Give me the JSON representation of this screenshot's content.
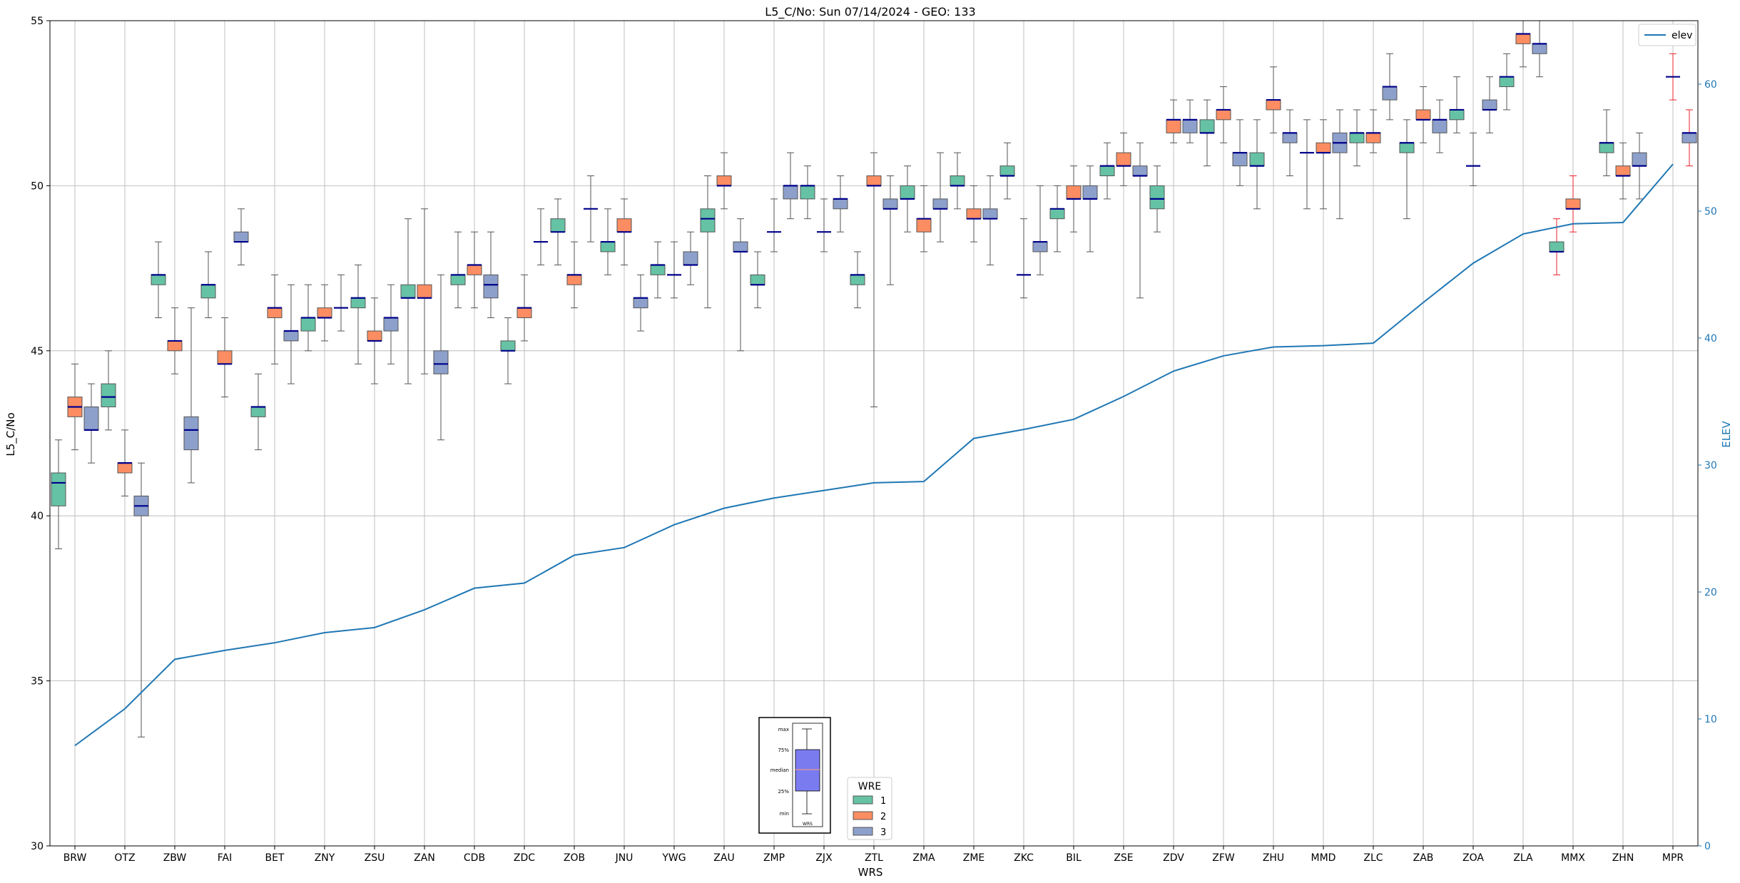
{
  "chart_data": {
    "type": "box",
    "title": "L5_C/No: Sun 07/14/2024 - GEO: 133",
    "xlabel": "WRS",
    "ylabel": "L5_C/No",
    "y2label": "ELEV",
    "ylim": [
      30,
      55
    ],
    "y2lim": [
      0,
      65
    ],
    "yticks": [
      30,
      35,
      40,
      45,
      50,
      55
    ],
    "y2ticks": [
      0,
      10,
      20,
      30,
      40,
      50,
      60
    ],
    "grid": true,
    "categories": [
      "BRW",
      "OTZ",
      "ZBW",
      "FAI",
      "BET",
      "ZNY",
      "ZSU",
      "ZAN",
      "CDB",
      "ZDC",
      "ZOB",
      "JNU",
      "YWG",
      "ZAU",
      "ZMP",
      "ZJX",
      "ZTL",
      "ZMA",
      "ZME",
      "ZKC",
      "BIL",
      "ZSE",
      "ZDV",
      "ZFW",
      "ZHU",
      "MMD",
      "ZLC",
      "ZAB",
      "ZOA",
      "ZLA",
      "MMX",
      "ZHN",
      "MPR"
    ],
    "wre_colors": {
      "1": "#66c2a5",
      "2": "#fc8d62",
      "3": "#8da0cb"
    },
    "median_color": "#00008b",
    "boxes": [
      {
        "wrs": "BRW",
        "wre": 1,
        "min": 39.0,
        "q1": 40.3,
        "med": 41.0,
        "q3": 41.3,
        "max": 42.3
      },
      {
        "wrs": "BRW",
        "wre": 2,
        "min": 42.0,
        "q1": 43.0,
        "med": 43.3,
        "q3": 43.6,
        "max": 44.6
      },
      {
        "wrs": "BRW",
        "wre": 3,
        "min": 41.6,
        "q1": 42.6,
        "med": 42.6,
        "q3": 43.3,
        "max": 44.0
      },
      {
        "wrs": "OTZ",
        "wre": 1,
        "min": 42.6,
        "q1": 43.3,
        "med": 43.6,
        "q3": 44.0,
        "max": 45.0
      },
      {
        "wrs": "OTZ",
        "wre": 2,
        "min": 40.6,
        "q1": 41.3,
        "med": 41.6,
        "q3": 41.6,
        "max": 42.6
      },
      {
        "wrs": "OTZ",
        "wre": 3,
        "min": 33.3,
        "q1": 40.0,
        "med": 40.3,
        "q3": 40.6,
        "max": 41.6
      },
      {
        "wrs": "ZBW",
        "wre": 1,
        "min": 46.0,
        "q1": 47.0,
        "med": 47.3,
        "q3": 47.3,
        "max": 48.3
      },
      {
        "wrs": "ZBW",
        "wre": 2,
        "min": 44.3,
        "q1": 45.0,
        "med": 45.3,
        "q3": 45.3,
        "max": 46.3
      },
      {
        "wrs": "ZBW",
        "wre": 3,
        "min": 41.0,
        "q1": 42.0,
        "med": 42.6,
        "q3": 43.0,
        "max": 46.3
      },
      {
        "wrs": "FAI",
        "wre": 1,
        "min": 46.0,
        "q1": 46.6,
        "med": 47.0,
        "q3": 47.0,
        "max": 48.0
      },
      {
        "wrs": "FAI",
        "wre": 2,
        "min": 43.6,
        "q1": 44.6,
        "med": 44.6,
        "q3": 45.0,
        "max": 46.0
      },
      {
        "wrs": "FAI",
        "wre": 3,
        "min": 47.6,
        "q1": 48.3,
        "med": 48.3,
        "q3": 48.6,
        "max": 49.3
      },
      {
        "wrs": "BET",
        "wre": 1,
        "min": 42.0,
        "q1": 43.0,
        "med": 43.3,
        "q3": 43.3,
        "max": 44.3
      },
      {
        "wrs": "BET",
        "wre": 2,
        "min": 44.6,
        "q1": 46.0,
        "med": 46.3,
        "q3": 46.3,
        "max": 47.3
      },
      {
        "wrs": "BET",
        "wre": 3,
        "min": 44.0,
        "q1": 45.3,
        "med": 45.6,
        "q3": 45.6,
        "max": 47.0
      },
      {
        "wrs": "ZNY",
        "wre": 1,
        "min": 45.0,
        "q1": 45.6,
        "med": 46.0,
        "q3": 46.0,
        "max": 47.0
      },
      {
        "wrs": "ZNY",
        "wre": 2,
        "min": 45.3,
        "q1": 46.0,
        "med": 46.0,
        "q3": 46.3,
        "max": 47.0
      },
      {
        "wrs": "ZNY",
        "wre": 3,
        "min": 45.6,
        "q1": 46.3,
        "med": 46.3,
        "q3": 46.3,
        "max": 47.3
      },
      {
        "wrs": "ZSU",
        "wre": 1,
        "min": 44.6,
        "q1": 46.3,
        "med": 46.6,
        "q3": 46.6,
        "max": 47.6
      },
      {
        "wrs": "ZSU",
        "wre": 2,
        "min": 44.0,
        "q1": 45.3,
        "med": 45.3,
        "q3": 45.6,
        "max": 46.6
      },
      {
        "wrs": "ZSU",
        "wre": 3,
        "min": 44.6,
        "q1": 45.6,
        "med": 46.0,
        "q3": 46.0,
        "max": 47.0
      },
      {
        "wrs": "ZAN",
        "wre": 1,
        "min": 44.0,
        "q1": 46.6,
        "med": 46.6,
        "q3": 47.0,
        "max": 49.0
      },
      {
        "wrs": "ZAN",
        "wre": 2,
        "min": 44.3,
        "q1": 46.6,
        "med": 46.6,
        "q3": 47.0,
        "max": 49.3
      },
      {
        "wrs": "ZAN",
        "wre": 3,
        "min": 42.3,
        "q1": 44.3,
        "med": 44.6,
        "q3": 45.0,
        "max": 47.3
      },
      {
        "wrs": "CDB",
        "wre": 1,
        "min": 46.3,
        "q1": 47.0,
        "med": 47.3,
        "q3": 47.3,
        "max": 48.6
      },
      {
        "wrs": "CDB",
        "wre": 2,
        "min": 46.3,
        "q1": 47.3,
        "med": 47.6,
        "q3": 47.6,
        "max": 48.6
      },
      {
        "wrs": "CDB",
        "wre": 3,
        "min": 46.0,
        "q1": 46.6,
        "med": 47.0,
        "q3": 47.3,
        "max": 48.6
      },
      {
        "wrs": "ZDC",
        "wre": 1,
        "min": 44.0,
        "q1": 45.0,
        "med": 45.0,
        "q3": 45.3,
        "max": 46.0
      },
      {
        "wrs": "ZDC",
        "wre": 2,
        "min": 45.3,
        "q1": 46.0,
        "med": 46.3,
        "q3": 46.3,
        "max": 47.3
      },
      {
        "wrs": "ZDC",
        "wre": 3,
        "min": 47.6,
        "q1": 48.3,
        "med": 48.3,
        "q3": 48.3,
        "max": 49.3
      },
      {
        "wrs": "ZOB",
        "wre": 1,
        "min": 47.6,
        "q1": 48.6,
        "med": 48.6,
        "q3": 49.0,
        "max": 49.6
      },
      {
        "wrs": "ZOB",
        "wre": 2,
        "min": 46.3,
        "q1": 47.0,
        "med": 47.3,
        "q3": 47.3,
        "max": 48.3
      },
      {
        "wrs": "ZOB",
        "wre": 3,
        "min": 48.3,
        "q1": 49.3,
        "med": 49.3,
        "q3": 49.3,
        "max": 50.3
      },
      {
        "wrs": "JNU",
        "wre": 1,
        "min": 47.3,
        "q1": 48.0,
        "med": 48.3,
        "q3": 48.3,
        "max": 49.3
      },
      {
        "wrs": "JNU",
        "wre": 2,
        "min": 47.6,
        "q1": 48.6,
        "med": 48.6,
        "q3": 49.0,
        "max": 49.6
      },
      {
        "wrs": "JNU",
        "wre": 3,
        "min": 45.6,
        "q1": 46.3,
        "med": 46.6,
        "q3": 46.6,
        "max": 47.3
      },
      {
        "wrs": "YWG",
        "wre": 1,
        "min": 46.6,
        "q1": 47.3,
        "med": 47.6,
        "q3": 47.6,
        "max": 48.3
      },
      {
        "wrs": "YWG",
        "wre": 2,
        "min": 46.6,
        "q1": 47.3,
        "med": 47.3,
        "q3": 47.3,
        "max": 48.3
      },
      {
        "wrs": "YWG",
        "wre": 3,
        "min": 47.0,
        "q1": 47.6,
        "med": 47.6,
        "q3": 48.0,
        "max": 48.6
      },
      {
        "wrs": "ZAU",
        "wre": 1,
        "min": 46.3,
        "q1": 48.6,
        "med": 49.0,
        "q3": 49.3,
        "max": 50.3
      },
      {
        "wrs": "ZAU",
        "wre": 2,
        "min": 49.3,
        "q1": 50.0,
        "med": 50.0,
        "q3": 50.3,
        "max": 51.0
      },
      {
        "wrs": "ZAU",
        "wre": 3,
        "min": 45.0,
        "q1": 48.0,
        "med": 48.0,
        "q3": 48.3,
        "max": 49.0
      },
      {
        "wrs": "ZMP",
        "wre": 1,
        "min": 46.3,
        "q1": 47.0,
        "med": 47.0,
        "q3": 47.3,
        "max": 48.0
      },
      {
        "wrs": "ZMP",
        "wre": 2,
        "min": 48.0,
        "q1": 48.6,
        "med": 48.6,
        "q3": 48.6,
        "max": 49.6
      },
      {
        "wrs": "ZMP",
        "wre": 3,
        "min": 49.0,
        "q1": 49.6,
        "med": 50.0,
        "q3": 50.0,
        "max": 51.0
      },
      {
        "wrs": "ZJX",
        "wre": 1,
        "min": 49.0,
        "q1": 49.6,
        "med": 50.0,
        "q3": 50.0,
        "max": 50.6
      },
      {
        "wrs": "ZJX",
        "wre": 2,
        "min": 48.0,
        "q1": 48.6,
        "med": 48.6,
        "q3": 48.6,
        "max": 49.6
      },
      {
        "wrs": "ZJX",
        "wre": 3,
        "min": 48.6,
        "q1": 49.3,
        "med": 49.6,
        "q3": 49.6,
        "max": 50.3
      },
      {
        "wrs": "ZTL",
        "wre": 1,
        "min": 46.3,
        "q1": 47.0,
        "med": 47.3,
        "q3": 47.3,
        "max": 48.0
      },
      {
        "wrs": "ZTL",
        "wre": 2,
        "min": 43.3,
        "q1": 50.0,
        "med": 50.0,
        "q3": 50.3,
        "max": 51.0
      },
      {
        "wrs": "ZTL",
        "wre": 3,
        "min": 47.0,
        "q1": 49.3,
        "med": 49.3,
        "q3": 49.6,
        "max": 50.3
      },
      {
        "wrs": "ZMA",
        "wre": 1,
        "min": 48.6,
        "q1": 49.6,
        "med": 49.6,
        "q3": 50.0,
        "max": 50.6
      },
      {
        "wrs": "ZMA",
        "wre": 2,
        "min": 48.0,
        "q1": 48.6,
        "med": 49.0,
        "q3": 49.0,
        "max": 50.0
      },
      {
        "wrs": "ZMA",
        "wre": 3,
        "min": 48.3,
        "q1": 49.3,
        "med": 49.3,
        "q3": 49.6,
        "max": 51.0
      },
      {
        "wrs": "ZME",
        "wre": 1,
        "min": 49.3,
        "q1": 50.0,
        "med": 50.0,
        "q3": 50.3,
        "max": 51.0
      },
      {
        "wrs": "ZME",
        "wre": 2,
        "min": 48.3,
        "q1": 49.0,
        "med": 49.0,
        "q3": 49.3,
        "max": 50.0
      },
      {
        "wrs": "ZME",
        "wre": 3,
        "min": 47.6,
        "q1": 49.0,
        "med": 49.0,
        "q3": 49.3,
        "max": 50.3
      },
      {
        "wrs": "ZKC",
        "wre": 1,
        "min": 49.6,
        "q1": 50.3,
        "med": 50.3,
        "q3": 50.6,
        "max": 51.3
      },
      {
        "wrs": "ZKC",
        "wre": 2,
        "min": 46.6,
        "q1": 47.3,
        "med": 47.3,
        "q3": 47.3,
        "max": 49.0
      },
      {
        "wrs": "ZKC",
        "wre": 3,
        "min": 47.3,
        "q1": 48.0,
        "med": 48.3,
        "q3": 48.3,
        "max": 50.0
      },
      {
        "wrs": "BIL",
        "wre": 1,
        "min": 48.0,
        "q1": 49.0,
        "med": 49.3,
        "q3": 49.3,
        "max": 50.0
      },
      {
        "wrs": "BIL",
        "wre": 2,
        "min": 48.6,
        "q1": 49.6,
        "med": 49.6,
        "q3": 50.0,
        "max": 50.6
      },
      {
        "wrs": "BIL",
        "wre": 3,
        "min": 48.0,
        "q1": 49.6,
        "med": 49.6,
        "q3": 50.0,
        "max": 50.6
      },
      {
        "wrs": "ZSE",
        "wre": 1,
        "min": 49.6,
        "q1": 50.3,
        "med": 50.6,
        "q3": 50.6,
        "max": 51.3
      },
      {
        "wrs": "ZSE",
        "wre": 2,
        "min": 50.0,
        "q1": 50.6,
        "med": 50.6,
        "q3": 51.0,
        "max": 51.6
      },
      {
        "wrs": "ZSE",
        "wre": 3,
        "min": 46.6,
        "q1": 50.3,
        "med": 50.3,
        "q3": 50.6,
        "max": 51.3
      },
      {
        "wrs": "ZDV",
        "wre": 1,
        "min": 48.6,
        "q1": 49.3,
        "med": 49.6,
        "q3": 50.0,
        "max": 50.6
      },
      {
        "wrs": "ZDV",
        "wre": 2,
        "min": 51.3,
        "q1": 51.6,
        "med": 52.0,
        "q3": 52.0,
        "max": 52.6
      },
      {
        "wrs": "ZDV",
        "wre": 3,
        "min": 51.3,
        "q1": 51.6,
        "med": 52.0,
        "q3": 52.0,
        "max": 52.6
      },
      {
        "wrs": "ZFW",
        "wre": 1,
        "min": 50.6,
        "q1": 51.6,
        "med": 51.6,
        "q3": 52.0,
        "max": 52.6
      },
      {
        "wrs": "ZFW",
        "wre": 2,
        "min": 51.3,
        "q1": 52.0,
        "med": 52.3,
        "q3": 52.3,
        "max": 53.0
      },
      {
        "wrs": "ZFW",
        "wre": 3,
        "min": 50.0,
        "q1": 50.6,
        "med": 51.0,
        "q3": 51.0,
        "max": 52.0
      },
      {
        "wrs": "ZHU",
        "wre": 1,
        "min": 49.3,
        "q1": 50.6,
        "med": 50.6,
        "q3": 51.0,
        "max": 52.0
      },
      {
        "wrs": "ZHU",
        "wre": 2,
        "min": 51.6,
        "q1": 52.3,
        "med": 52.6,
        "q3": 52.6,
        "max": 53.6
      },
      {
        "wrs": "ZHU",
        "wre": 3,
        "min": 50.3,
        "q1": 51.3,
        "med": 51.6,
        "q3": 51.6,
        "max": 52.3
      },
      {
        "wrs": "MMD",
        "wre": 1,
        "min": 49.3,
        "q1": 51.0,
        "med": 51.0,
        "q3": 51.0,
        "max": 52.0
      },
      {
        "wrs": "MMD",
        "wre": 2,
        "min": 49.3,
        "q1": 51.0,
        "med": 51.0,
        "q3": 51.3,
        "max": 52.0
      },
      {
        "wrs": "MMD",
        "wre": 3,
        "min": 49.0,
        "q1": 51.0,
        "med": 51.3,
        "q3": 51.6,
        "max": 52.3
      },
      {
        "wrs": "ZLC",
        "wre": 1,
        "min": 50.6,
        "q1": 51.3,
        "med": 51.6,
        "q3": 51.6,
        "max": 52.3
      },
      {
        "wrs": "ZLC",
        "wre": 2,
        "min": 51.0,
        "q1": 51.3,
        "med": 51.6,
        "q3": 51.6,
        "max": 52.3
      },
      {
        "wrs": "ZLC",
        "wre": 3,
        "min": 52.0,
        "q1": 52.6,
        "med": 53.0,
        "q3": 53.0,
        "max": 54.0
      },
      {
        "wrs": "ZAB",
        "wre": 1,
        "min": 49.0,
        "q1": 51.0,
        "med": 51.3,
        "q3": 51.3,
        "max": 52.0
      },
      {
        "wrs": "ZAB",
        "wre": 2,
        "min": 51.3,
        "q1": 52.0,
        "med": 52.0,
        "q3": 52.3,
        "max": 53.0
      },
      {
        "wrs": "ZAB",
        "wre": 3,
        "min": 51.0,
        "q1": 51.6,
        "med": 52.0,
        "q3": 52.0,
        "max": 52.6
      },
      {
        "wrs": "ZOA",
        "wre": 1,
        "min": 51.6,
        "q1": 52.0,
        "med": 52.3,
        "q3": 52.3,
        "max": 53.3
      },
      {
        "wrs": "ZOA",
        "wre": 2,
        "min": 50.0,
        "q1": 50.6,
        "med": 50.6,
        "q3": 50.6,
        "max": 51.6
      },
      {
        "wrs": "ZOA",
        "wre": 3,
        "min": 51.6,
        "q1": 52.3,
        "med": 52.3,
        "q3": 52.6,
        "max": 53.3
      },
      {
        "wrs": "ZLA",
        "wre": 1,
        "min": 52.3,
        "q1": 53.0,
        "med": 53.3,
        "q3": 53.3,
        "max": 54.0
      },
      {
        "wrs": "ZLA",
        "wre": 2,
        "min": 53.6,
        "q1": 54.3,
        "med": 54.6,
        "q3": 54.6,
        "max": 55.0
      },
      {
        "wrs": "ZLA",
        "wre": 3,
        "min": 53.3,
        "q1": 54.0,
        "med": 54.3,
        "q3": 54.3,
        "max": 55.0
      },
      {
        "wrs": "MMX",
        "wre": 1,
        "min": 47.3,
        "q1": 48.0,
        "med": 48.0,
        "q3": 48.3,
        "max": 49.0,
        "whisker": "#e8212a"
      },
      {
        "wrs": "MMX",
        "wre": 2,
        "min": 48.6,
        "q1": 49.3,
        "med": 49.3,
        "q3": 49.6,
        "max": 50.3,
        "whisker": "#e8212a"
      },
      {
        "wrs": "ZHN",
        "wre": 1,
        "min": 50.3,
        "q1": 51.0,
        "med": 51.3,
        "q3": 51.3,
        "max": 52.3
      },
      {
        "wrs": "ZHN",
        "wre": 2,
        "min": 49.6,
        "q1": 50.3,
        "med": 50.3,
        "q3": 50.6,
        "max": 51.3
      },
      {
        "wrs": "ZHN",
        "wre": 3,
        "min": 49.6,
        "q1": 50.6,
        "med": 50.6,
        "q3": 51.0,
        "max": 51.6
      },
      {
        "wrs": "MPR",
        "wre": 2,
        "min": 52.6,
        "q1": 53.3,
        "med": 53.3,
        "q3": 53.3,
        "max": 54.0,
        "whisker": "#e8212a"
      },
      {
        "wrs": "MPR",
        "wre": 3,
        "min": 50.6,
        "q1": 51.3,
        "med": 51.6,
        "q3": 51.6,
        "max": 52.3,
        "whisker": "#e8212a"
      }
    ],
    "elev_series": {
      "name": "elev",
      "color": "#1f77b4",
      "values": [
        7.9,
        10.8,
        14.7,
        15.4,
        16.0,
        16.8,
        17.2,
        18.6,
        20.3,
        20.7,
        22.9,
        23.5,
        25.3,
        26.6,
        27.4,
        28.0,
        28.6,
        28.7,
        32.1,
        32.8,
        33.6,
        35.4,
        37.4,
        38.6,
        39.3,
        39.4,
        39.6,
        42.8,
        45.9,
        48.2,
        49.0,
        49.1,
        53.7
      ]
    },
    "legend_wre": {
      "title": "WRE",
      "entries": [
        "1",
        "2",
        "3"
      ],
      "placement": "bottom-center"
    },
    "legend_elev": {
      "entries": [
        "elev"
      ],
      "placement": "top-right"
    },
    "key_inset": {
      "labels": [
        "max",
        "75%",
        "median",
        "25%",
        "min"
      ],
      "xlabel": "WRS",
      "placement": "bottom-center",
      "box_color": "#7b7bf0",
      "median_color": "#d6909b"
    }
  }
}
